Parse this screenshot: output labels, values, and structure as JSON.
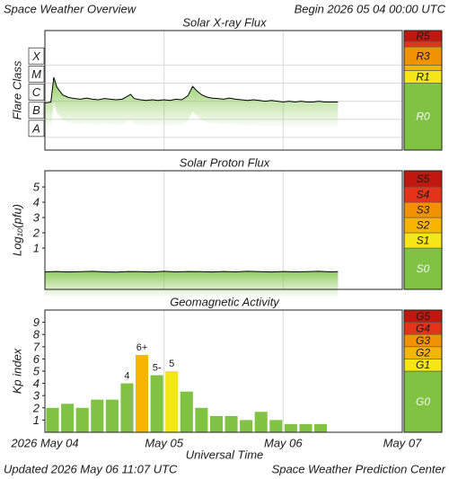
{
  "title": "Space Weather Overview",
  "begin": "Begin 2026 05 04 00:00 UTC",
  "updated": "Updated 2026 May 06 11:07 UTC",
  "credit": "Space Weather Prediction Center",
  "chart_data": [
    {
      "type": "line",
      "title": "Solar X-ray Flux",
      "ylabel": "Flare Class",
      "log": true,
      "ylim": [
        2e-09,
        0.008
      ],
      "yticks": [
        {
          "value": 1e-08,
          "label": "A"
        },
        {
          "value": 1e-07,
          "label": "B"
        },
        {
          "value": 1e-06,
          "label": "C"
        },
        {
          "value": 1e-05,
          "label": "M"
        },
        {
          "value": 0.0001,
          "label": "X"
        }
      ],
      "xlim": [
        0,
        3
      ],
      "xticks": [
        0,
        1,
        2,
        3
      ],
      "grid": [
        "x",
        "y"
      ],
      "series": [
        {
          "color": "#000000",
          "fill": "#7dc342",
          "x": [
            0,
            0.05,
            0.075,
            0.1,
            0.15,
            0.2,
            0.25,
            0.3,
            0.35,
            0.4,
            0.45,
            0.5,
            0.55,
            0.6,
            0.65,
            0.72,
            0.75,
            0.8,
            0.85,
            0.9,
            0.95,
            1,
            1.05,
            1.1,
            1.15,
            1.2,
            1.24,
            1.28,
            1.32,
            1.36,
            1.4,
            1.45,
            1.5,
            1.55,
            1.6,
            1.65,
            1.7,
            1.75,
            1.8,
            1.85,
            1.9,
            1.95,
            2,
            2.05,
            2.1,
            2.15,
            2.2,
            2.25,
            2.3,
            2.35,
            2.4,
            2.46
          ],
          "values": [
            8e-07,
            9e-07,
            2.1e-05,
            6e-06,
            2.2e-06,
            1.6e-06,
            1.4e-06,
            1.3e-06,
            1.5e-06,
            1.3e-06,
            1.2e-06,
            1.4e-06,
            1.3e-06,
            1.2e-06,
            1.3e-06,
            2.4e-06,
            1.4e-06,
            1.2e-06,
            1.1e-06,
            1.2e-06,
            1.1e-06,
            1.2e-06,
            1.1e-06,
            1.3e-06,
            1.2e-06,
            2e-06,
            6.6e-06,
            3.5e-06,
            2.2e-06,
            1.7e-06,
            1.5e-06,
            1.4e-06,
            1.3e-06,
            1.5e-06,
            1.3e-06,
            1.2e-06,
            1.1e-06,
            1.2e-06,
            1.1e-06,
            1e-06,
            1.1e-06,
            1e-06,
            9e-07,
            1e-06,
            9e-07,
            1e-06,
            9e-07,
            9e-07,
            1e-06,
            9e-07,
            9e-07,
            9e-07
          ]
        }
      ],
      "scale": [
        {
          "label": "R0",
          "from": 2e-09,
          "to": 1e-05,
          "color": "#80c342"
        },
        {
          "label": "R1",
          "from": 1e-05,
          "to": 5e-05,
          "color": "#f5e616"
        },
        {
          "from": 5e-05,
          "to": 0.0001,
          "color": "#f7b500"
        },
        {
          "label": "R3",
          "from": 0.0001,
          "to": 0.001,
          "color": "#f39200"
        },
        {
          "from": 0.001,
          "to": 0.002,
          "color": "#e5321b"
        },
        {
          "label": "R5",
          "from": 0.002,
          "to": 0.008,
          "color": "#c0180f"
        }
      ]
    },
    {
      "type": "line",
      "title": "Solar Proton Flux",
      "ylabel": "Log₁₀(pfu)",
      "ylim": [
        -1.7,
        6.06
      ],
      "yticks": [
        1,
        2,
        3,
        4,
        5
      ],
      "xlim": [
        0,
        3
      ],
      "xticks": [
        0,
        1,
        2,
        3
      ],
      "grid": [
        "x"
      ],
      "series": [
        {
          "color": "#000000",
          "fill": "#7dc342",
          "x": [
            0,
            0.1,
            0.2,
            0.3,
            0.4,
            0.5,
            0.6,
            0.7,
            0.8,
            0.9,
            1,
            1.1,
            1.2,
            1.3,
            1.4,
            1.5,
            1.6,
            1.7,
            1.8,
            1.9,
            2,
            2.1,
            2.2,
            2.3,
            2.4,
            2.46
          ],
          "values": [
            -0.55,
            -0.53,
            -0.56,
            -0.54,
            -0.52,
            -0.55,
            -0.57,
            -0.53,
            -0.54,
            -0.56,
            -0.52,
            -0.55,
            -0.53,
            -0.54,
            -0.56,
            -0.53,
            -0.55,
            -0.52,
            -0.54,
            -0.56,
            -0.53,
            -0.55,
            -0.54,
            -0.52,
            -0.55,
            -0.54
          ]
        }
      ],
      "scale": [
        {
          "label": "S0",
          "from": -1.7,
          "to": 1,
          "color": "#80c342"
        },
        {
          "label": "S1",
          "from": 1,
          "to": 2,
          "color": "#f5e616"
        },
        {
          "label": "S2",
          "from": 2,
          "to": 3,
          "color": "#f7b500"
        },
        {
          "label": "S3",
          "from": 3,
          "to": 4,
          "color": "#f39200"
        },
        {
          "label": "S4",
          "from": 4,
          "to": 5,
          "color": "#e5321b"
        },
        {
          "label": "S5",
          "from": 5,
          "to": 6.06,
          "color": "#c0180f"
        }
      ]
    },
    {
      "type": "bar",
      "title": "Geomagnetic Activity",
      "ylabel": "Kp index",
      "xlabel": "Universal Time",
      "ylim": [
        0,
        10
      ],
      "yticks": [
        1,
        2,
        3,
        4,
        5,
        6,
        7,
        8,
        9
      ],
      "xlim": [
        0,
        3
      ],
      "xticks": [
        {
          "value": 0,
          "label": "2026 May 04"
        },
        {
          "value": 1,
          "label": "May 05"
        },
        {
          "value": 2,
          "label": "May 06"
        },
        {
          "value": 3,
          "label": "May 07"
        }
      ],
      "grid": [
        "x"
      ],
      "x": [
        0,
        0.125,
        0.25,
        0.375,
        0.5,
        0.625,
        0.75,
        0.875,
        1,
        1.125,
        1.25,
        1.375,
        1.5,
        1.625,
        1.75,
        1.875,
        2,
        2.125,
        2.25
      ],
      "values": [
        2,
        2.33,
        2,
        2.67,
        2.67,
        4,
        6.33,
        4.67,
        5,
        3.33,
        2,
        1.33,
        1.33,
        1,
        1.67,
        1,
        0.67,
        0.67,
        0.67
      ],
      "value_labels": [
        null,
        null,
        null,
        null,
        null,
        "4",
        "6+",
        "5-",
        "5",
        null,
        null,
        null,
        null,
        null,
        null,
        null,
        null,
        null,
        null
      ],
      "scale": [
        {
          "label": "G0",
          "from": 0,
          "to": 5,
          "color": "#80c342"
        },
        {
          "label": "G1",
          "from": 5,
          "to": 6,
          "color": "#f5e616"
        },
        {
          "label": "G2",
          "from": 6,
          "to": 7,
          "color": "#f7b500"
        },
        {
          "label": "G3",
          "from": 7,
          "to": 8,
          "color": "#f39200"
        },
        {
          "label": "G4",
          "from": 8,
          "to": 9,
          "color": "#e5321b"
        },
        {
          "label": "G5",
          "from": 9,
          "to": 10,
          "color": "#c0180f"
        }
      ]
    }
  ]
}
